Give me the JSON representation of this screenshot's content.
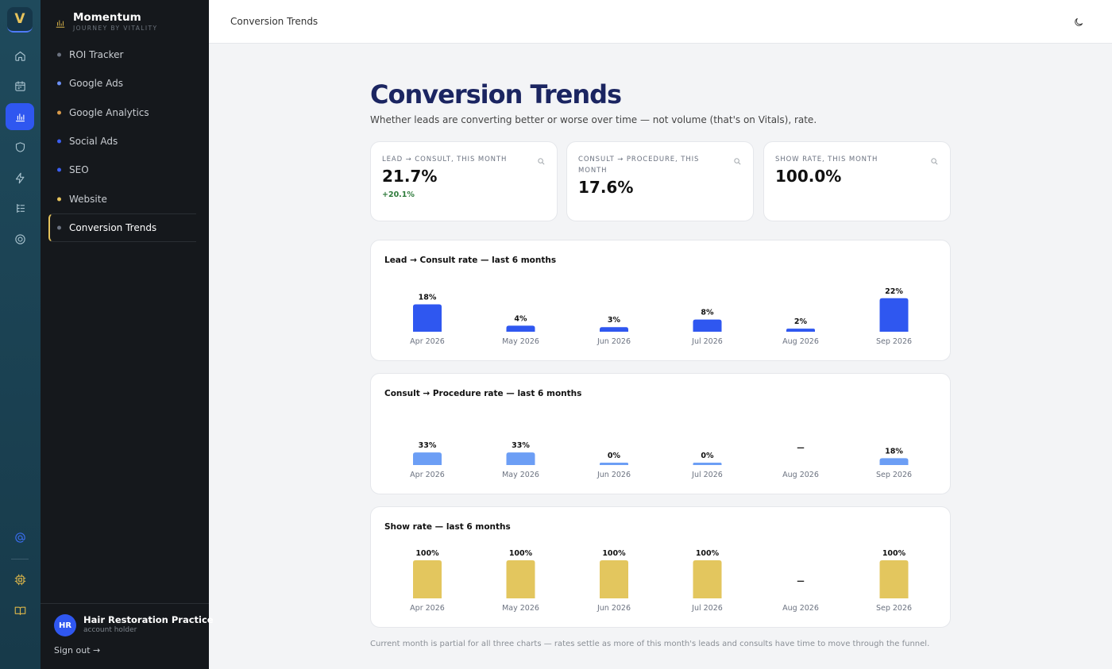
{
  "rail": {
    "logo": "V",
    "icons": [
      "home-icon",
      "calendar-icon",
      "bar-chart-icon",
      "shield-icon",
      "bolt-icon",
      "list-tree-icon",
      "target-icon",
      "at-sign-icon",
      "chip-icon",
      "book-icon"
    ]
  },
  "brand": {
    "name": "Momentum",
    "tagline": "JOURNEY BY VITALITY"
  },
  "nav": {
    "items": [
      {
        "label": "ROI Tracker",
        "dot": "#6b7280"
      },
      {
        "label": "Google Ads",
        "dot": "#6b8ff5"
      },
      {
        "label": "Google Analytics",
        "dot": "#d99a4a"
      },
      {
        "label": "Social Ads",
        "dot": "#3b5ef0"
      },
      {
        "label": "SEO",
        "dot": "#3b5ef0"
      },
      {
        "label": "Website",
        "dot": "#e6c35c"
      },
      {
        "label": "Conversion Trends",
        "dot": "#6b7280"
      }
    ]
  },
  "user": {
    "initials": "HR",
    "name": "Hair Restoration Practice",
    "role": "account holder",
    "signout": "Sign out →"
  },
  "header": {
    "title": "Conversion Trends"
  },
  "page": {
    "title": "Conversion Trends",
    "subtitle": "Whether leads are converting better or worse over time — not volume (that's on Vitals), rate.",
    "footnote": "Current month is partial for all three charts — rates settle as more of this month's leads and consults have time to move through the funnel."
  },
  "kpis": [
    {
      "label": "LEAD → CONSULT, THIS MONTH",
      "value": "21.7%",
      "delta": "+20.1%"
    },
    {
      "label": "CONSULT → PROCEDURE, THIS MONTH",
      "value": "17.6%",
      "delta": ""
    },
    {
      "label": "SHOW RATE, THIS MONTH",
      "value": "100.0%",
      "delta": ""
    }
  ],
  "colors": {
    "lead": "#2f57f0",
    "consult": "#6c9ef5",
    "show": "#e3c65e",
    "accent": "#e6c35c"
  },
  "chart_data": [
    {
      "type": "bar",
      "title": "Lead → Consult rate — last 6 months",
      "categories": [
        "Apr 2026",
        "May 2026",
        "Jun 2026",
        "Jul 2026",
        "Aug 2026",
        "Sep 2026"
      ],
      "values": [
        18,
        4,
        3,
        8,
        2,
        22
      ],
      "labels": [
        "18%",
        "4%",
        "3%",
        "8%",
        "2%",
        "22%"
      ],
      "color": "#2f57f0"
    },
    {
      "type": "bar",
      "title": "Consult → Procedure rate — last 6 months",
      "categories": [
        "Apr 2026",
        "May 2026",
        "Jun 2026",
        "Jul 2026",
        "Aug 2026",
        "Sep 2026"
      ],
      "values": [
        33,
        33,
        0,
        0,
        null,
        18
      ],
      "labels": [
        "33%",
        "33%",
        "0%",
        "0%",
        "—",
        "18%"
      ],
      "color": "#6c9ef5"
    },
    {
      "type": "bar",
      "title": "Show rate — last 6 months",
      "categories": [
        "Apr 2026",
        "May 2026",
        "Jun 2026",
        "Jul 2026",
        "Aug 2026",
        "Sep 2026"
      ],
      "values": [
        100,
        100,
        100,
        100,
        null,
        100
      ],
      "labels": [
        "100%",
        "100%",
        "100%",
        "100%",
        "—",
        "100%"
      ],
      "color": "#e3c65e"
    }
  ]
}
